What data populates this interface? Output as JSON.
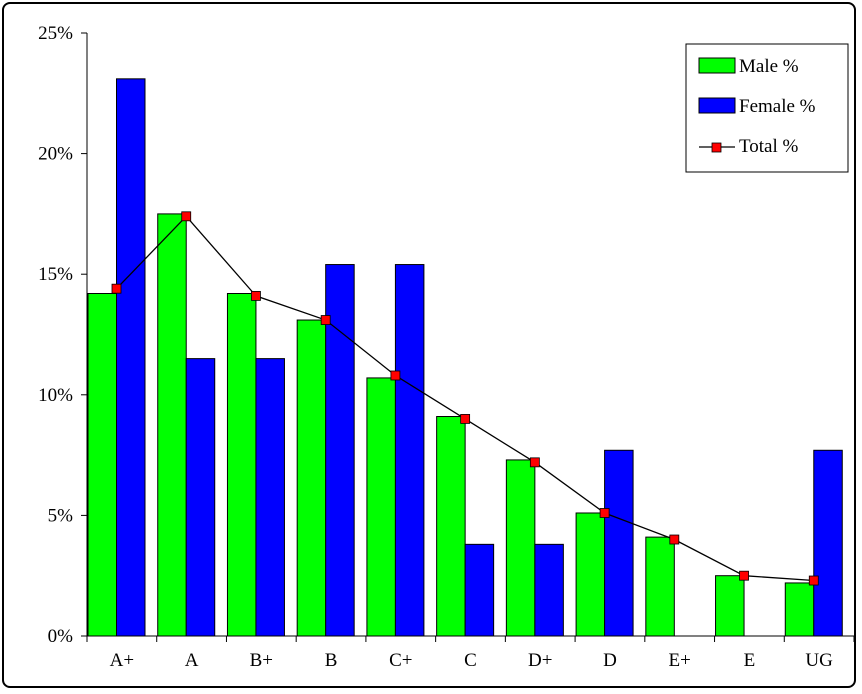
{
  "chart_data": {
    "type": "bar",
    "categories": [
      "A+",
      "A",
      "B+",
      "B",
      "C+",
      "C",
      "D+",
      "D",
      "E+",
      "E",
      "UG"
    ],
    "series": [
      {
        "name": "Male %",
        "type": "bar",
        "color": "#00ff00",
        "values": [
          14.2,
          17.5,
          14.2,
          13.1,
          10.7,
          9.1,
          7.3,
          5.1,
          4.1,
          2.5,
          2.2
        ]
      },
      {
        "name": "Female %",
        "type": "bar",
        "color": "#0000ff",
        "values": [
          23.1,
          11.5,
          11.5,
          15.4,
          15.4,
          3.8,
          3.8,
          7.7,
          0,
          0,
          7.7
        ]
      },
      {
        "name": "Total %",
        "type": "line",
        "color": "#000000",
        "marker_color": "#ff0000",
        "values": [
          14.4,
          17.4,
          14.1,
          13.1,
          10.8,
          9.0,
          7.2,
          5.1,
          4.0,
          2.5,
          2.3
        ]
      }
    ],
    "yticks": [
      "0%",
      "5%",
      "10%",
      "15%",
      "20%",
      "25%"
    ],
    "ylim": [
      0,
      25
    ],
    "grid": false,
    "legend_position": "top-right"
  }
}
